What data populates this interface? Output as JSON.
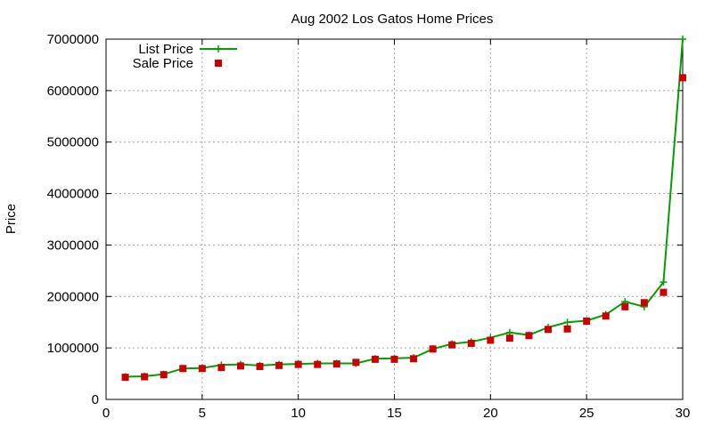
{
  "chart_data": {
    "type": "line",
    "title": "Aug 2002 Los Gatos Home Prices",
    "xlabel": "",
    "ylabel": "Price",
    "xlim": [
      0,
      30
    ],
    "ylim": [
      0,
      7000000
    ],
    "xticks": [
      "0",
      "5",
      "10",
      "15",
      "20",
      "25",
      "30"
    ],
    "yticks": [
      "0",
      "1000000",
      "2000000",
      "3000000",
      "4000000",
      "5000000",
      "6000000",
      "7000000"
    ],
    "grid": true,
    "legend_position": "top-left",
    "x": [
      1,
      2,
      3,
      4,
      5,
      6,
      7,
      8,
      9,
      10,
      11,
      12,
      13,
      14,
      15,
      16,
      17,
      18,
      19,
      20,
      21,
      22,
      23,
      24,
      25,
      26,
      27,
      28,
      29,
      30
    ],
    "series": [
      {
        "name": "List Price",
        "style": "line-with-plus-markers",
        "color": "#00a000",
        "values": [
          440000,
          450000,
          490000,
          600000,
          610000,
          670000,
          680000,
          660000,
          680000,
          690000,
          700000,
          700000,
          700000,
          790000,
          800000,
          810000,
          980000,
          1080000,
          1120000,
          1200000,
          1300000,
          1250000,
          1400000,
          1500000,
          1530000,
          1650000,
          1900000,
          1800000,
          2280000,
          7000000
        ]
      },
      {
        "name": "Sale Price",
        "style": "square-markers",
        "color": "#cc0000",
        "values": [
          430000,
          440000,
          480000,
          600000,
          600000,
          620000,
          650000,
          640000,
          660000,
          680000,
          680000,
          690000,
          720000,
          780000,
          780000,
          790000,
          980000,
          1060000,
          1090000,
          1150000,
          1190000,
          1240000,
          1360000,
          1370000,
          1520000,
          1620000,
          1800000,
          1880000,
          2080000,
          6250000
        ]
      }
    ]
  }
}
